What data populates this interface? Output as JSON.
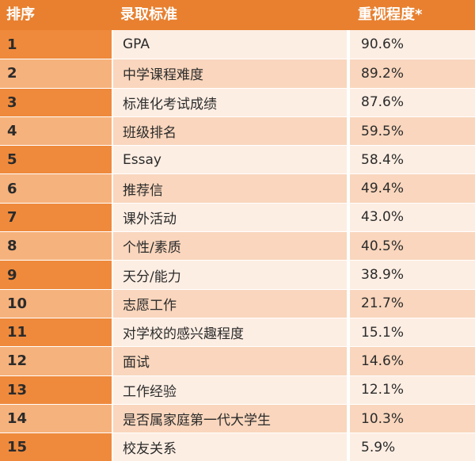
{
  "header": {
    "rank": "排序",
    "criteria": "录取标准",
    "weight": "重视程度*"
  },
  "rows": [
    {
      "rank": "1",
      "criteria": "GPA",
      "weight": "90.6%"
    },
    {
      "rank": "2",
      "criteria": "中学课程难度",
      "weight": "89.2%"
    },
    {
      "rank": "3",
      "criteria": "标准化考试成绩",
      "weight": "87.6%"
    },
    {
      "rank": "4",
      "criteria": "班级排名",
      "weight": "59.5%"
    },
    {
      "rank": "5",
      "criteria": "Essay",
      "weight": "58.4%"
    },
    {
      "rank": "6",
      "criteria": "推荐信",
      "weight": "49.4%"
    },
    {
      "rank": "7",
      "criteria": "课外活动",
      "weight": "43.0%"
    },
    {
      "rank": "8",
      "criteria": "个性/素质",
      "weight": "40.5%"
    },
    {
      "rank": "9",
      "criteria": "天分/能力",
      "weight": "38.9%"
    },
    {
      "rank": "10",
      "criteria": "志愿工作",
      "weight": "21.7%"
    },
    {
      "rank": "11",
      "criteria": "对学校的感兴趣程度",
      "weight": "15.1%"
    },
    {
      "rank": "12",
      "criteria": "面试",
      "weight": "14.6%"
    },
    {
      "rank": "13",
      "criteria": "工作经验",
      "weight": "12.1%"
    },
    {
      "rank": "14",
      "criteria": "是否属家庭第一代大学生",
      "weight": "10.3%"
    },
    {
      "rank": "15",
      "criteria": "校友关系",
      "weight": "5.9%"
    }
  ]
}
